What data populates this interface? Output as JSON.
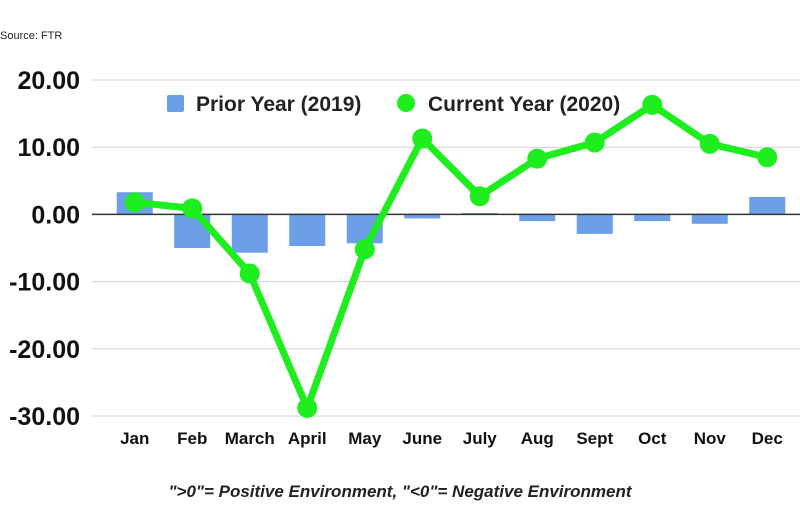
{
  "source": "Source: FTR",
  "footnote": "\">0\"= Positive Environment, \"<0\"= Negative Environment",
  "colors": {
    "prior": "#6d9ee8",
    "current": "#1eee1e",
    "grid": "#d0d0d0",
    "zero": "#333333"
  },
  "chart_data": {
    "type": "bar",
    "categories": [
      "Jan",
      "Feb",
      "March",
      "April",
      "May",
      "June",
      "July",
      "Aug",
      "Sept",
      "Oct",
      "Nov",
      "Dec"
    ],
    "series": [
      {
        "name": "Prior Year (2019)",
        "type": "bar",
        "values": [
          3.3,
          -5.0,
          -5.7,
          -4.7,
          -4.3,
          -0.6,
          0.2,
          -1.0,
          -2.9,
          -1.0,
          -1.4,
          2.6
        ]
      },
      {
        "name": "Current Year (2020)",
        "type": "line",
        "values": [
          1.8,
          0.9,
          -8.8,
          -28.8,
          -5.2,
          11.3,
          2.7,
          8.3,
          10.7,
          16.3,
          10.5,
          8.5
        ]
      }
    ],
    "yticks": [
      "20.00",
      "10.00",
      "0.00",
      "-10.00",
      "-20.00",
      "-30.00"
    ],
    "ylim": [
      -30,
      20
    ],
    "legend_position": "top",
    "grid": true
  }
}
